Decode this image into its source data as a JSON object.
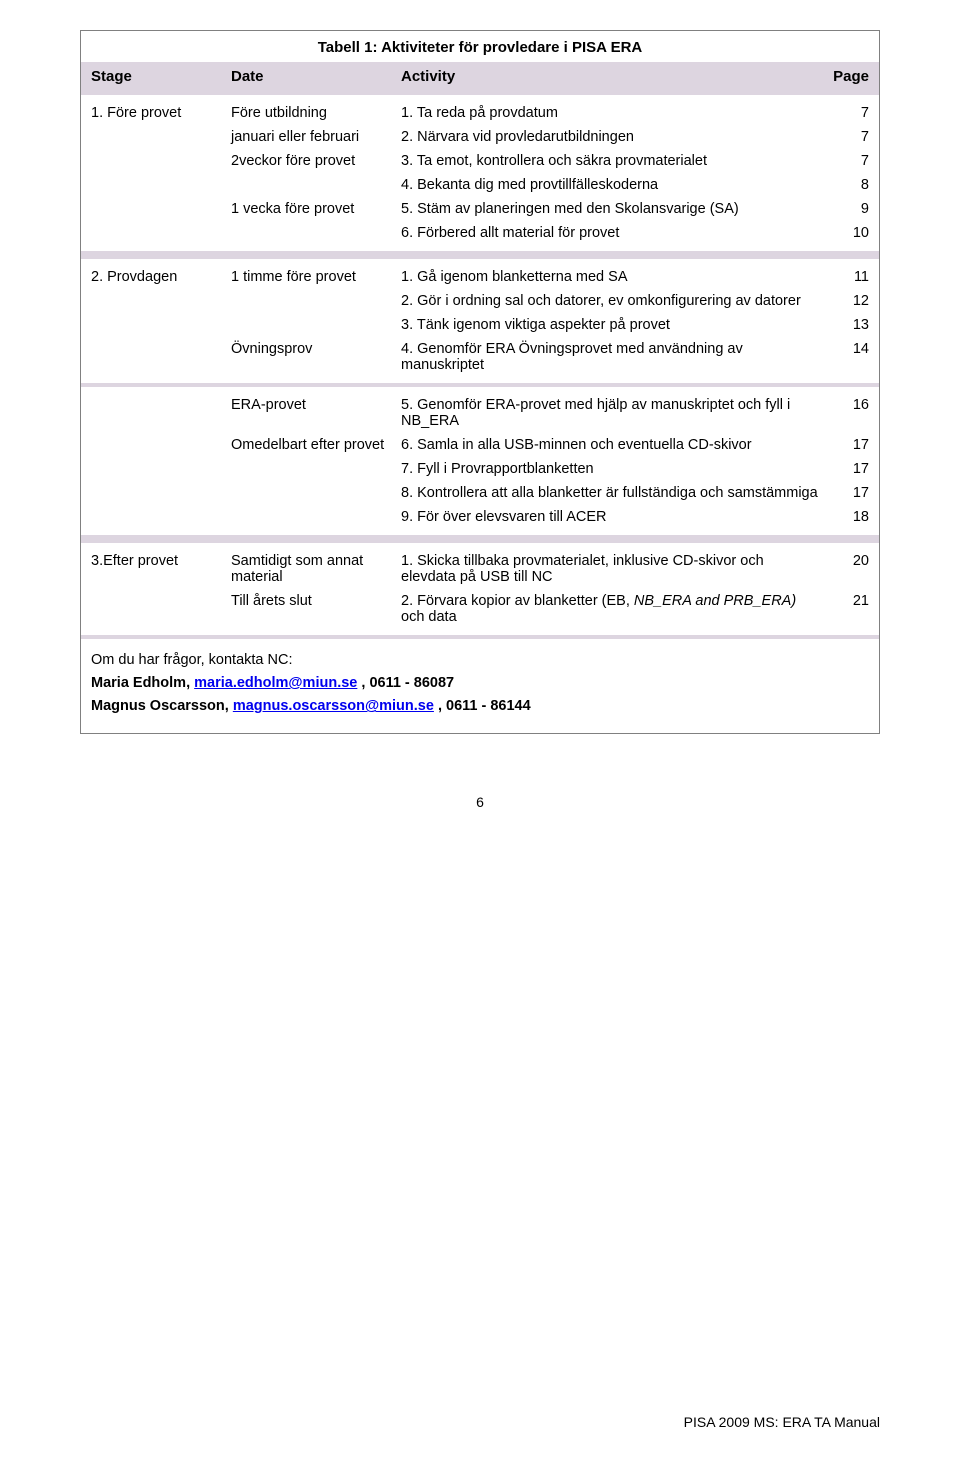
{
  "title": "Tabell 1: Aktiviteter för provledare i PISA ERA",
  "header": {
    "stage": "Stage",
    "date": "Date",
    "activity": "Activity",
    "page": "Page"
  },
  "stage1": {
    "name": "1. Före provet",
    "groups": [
      {
        "date": "Före utbildning",
        "items": [
          {
            "text": "1. Ta reda på provdatum",
            "page": "7"
          }
        ]
      },
      {
        "date": "januari eller februari",
        "items": [
          {
            "text": "2. Närvara vid provledarutbildningen",
            "page": "7"
          }
        ]
      },
      {
        "date": "2veckor före provet",
        "items": [
          {
            "text": "3. Ta emot, kontrollera och säkra provmaterialet",
            "page": "7"
          },
          {
            "text": "4. Bekanta dig med provtillfälleskoderna",
            "page": "8"
          }
        ]
      },
      {
        "date": "1 vecka före provet",
        "items": [
          {
            "text": "5. Stäm av planeringen med den Skolansvarige (SA)",
            "page": "9"
          },
          {
            "text": "6. Förbered allt material för provet",
            "page": "10"
          }
        ]
      }
    ]
  },
  "stage2": {
    "name": "2. Provdagen",
    "groups": [
      {
        "date": "1 timme före provet",
        "items": [
          {
            "text": "1. Gå igenom blanketterna med SA",
            "page": "11"
          },
          {
            "text": "2. Gör i ordning sal och datorer, ev omkonfigurering av datorer",
            "page": "12"
          },
          {
            "text": "3. Tänk igenom viktiga aspekter på provet",
            "page": "13"
          }
        ]
      },
      {
        "date": "Övningsprov",
        "items": [
          {
            "text": "4. Genomför ERA Övningsprovet med användning av manuskriptet",
            "page": "14"
          }
        ]
      }
    ],
    "groups2": [
      {
        "date": "ERA-provet",
        "items": [
          {
            "text": "5. Genomför ERA-provet med hjälp av manuskriptet och fyll i NB_ERA",
            "page": "16"
          }
        ]
      },
      {
        "date": "Omedelbart efter provet",
        "items": [
          {
            "text": "6. Samla in alla USB-minnen och eventuella CD-skivor",
            "page": "17"
          },
          {
            "text": "7.  Fyll i Provrapportblanketten",
            "page": "17"
          },
          {
            "text": "8. Kontrollera att alla blanketter är fullständiga och samstämmiga",
            "page": "17"
          },
          {
            "text": "9. För över elevsvaren till ACER",
            "page": "18"
          }
        ]
      }
    ]
  },
  "stage3": {
    "name": "3.Efter provet",
    "groups": [
      {
        "date": "Samtidigt som annat material",
        "items": [
          {
            "text": "1. Skicka tillbaka provmaterialet, inklusive CD-skivor och elevdata på USB till NC",
            "page": "20"
          }
        ]
      },
      {
        "date": "Till årets slut",
        "items_html": true,
        "items": [
          {
            "text1": "2. Förvara kopior av blanketter (EB, ",
            "text2": "NB_ERA and PRB_ERA) ",
            "text3": "och data",
            "page": "21"
          }
        ]
      }
    ]
  },
  "contact": {
    "intro": "Om du har frågor, kontakta NC:",
    "p1a": "Maria Edholm, ",
    "p1link": "maria.edholm@miun.se",
    "p1b": " , 0611 - 86087",
    "p2a": "Magnus Oscarsson, ",
    "p2link": "magnus.oscarsson@miun.se",
    "p2b": " , 0611 - 86144"
  },
  "footer": {
    "pageNum": "6",
    "right": "PISA 2009 MS: ERA TA Manual"
  }
}
